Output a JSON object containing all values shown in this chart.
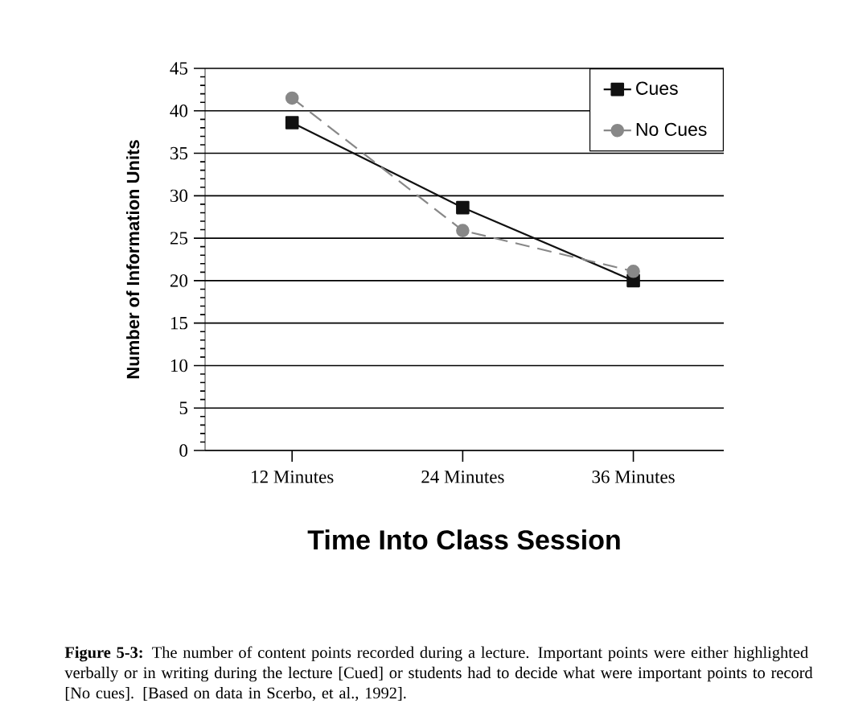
{
  "chart_data": {
    "type": "line",
    "xlabel": "Time Into Class Session",
    "ylabel": "Number of Information Units",
    "categories": [
      "12 Minutes",
      "24 Minutes",
      "36 Minutes"
    ],
    "series": [
      {
        "name": "Cues",
        "color": "#111111",
        "values": [
          38.6,
          28.6,
          20.0
        ],
        "marker": "square",
        "line_style": "solid"
      },
      {
        "name": "No Cues",
        "color": "#888888",
        "values": [
          41.5,
          25.9,
          21.1
        ],
        "marker": "circle",
        "line_style": "dashed"
      }
    ],
    "ylim": [
      0,
      45
    ],
    "yticks": [
      0,
      5,
      10,
      15,
      20,
      25,
      30,
      35,
      40,
      45
    ],
    "grid": "y",
    "legend": "top right",
    "annotations": [
      "**Figure 5-3:** The number of content points recorded during a lecture. Important points were either highlighted verbally or in writing during the lecture [Cued] or students had to decide what  were important points to  record [No cues]. [Based on data in Scerbo, et al., 1992]."
    ]
  }
}
